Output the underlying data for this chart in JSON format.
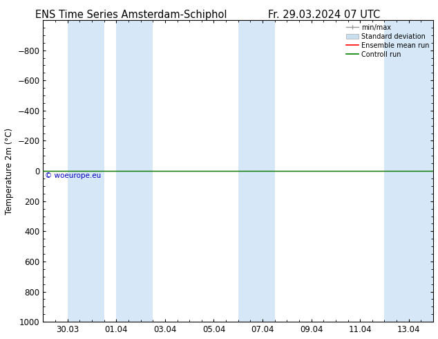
{
  "title_left": "ENS Time Series Amsterdam-Schiphol",
  "title_right": "Fr. 29.03.2024 07 UTC",
  "ylabel": "Temperature 2m (°C)",
  "watermark": "© woeurope.eu",
  "ylim_bottom": 1000,
  "ylim_top": -1000,
  "yticks": [
    -800,
    -600,
    -400,
    -200,
    0,
    200,
    400,
    600,
    800,
    1000
  ],
  "x_start": "2024-03-29",
  "x_end": "2024-04-14",
  "xtick_positions": [
    1,
    3,
    5,
    7,
    9,
    11,
    13,
    15
  ],
  "xtick_labels": [
    "30.03",
    "01.04",
    "03.04",
    "05.04",
    "07.04",
    "09.04",
    "11.04",
    "13.04"
  ],
  "bg_color": "#ffffff",
  "plot_bg_color": "#ffffff",
  "shaded_bands": [
    [
      1,
      2.5
    ],
    [
      3,
      4.5
    ],
    [
      8,
      9.5
    ],
    [
      14,
      16
    ]
  ],
  "shaded_color": "#d6e8f7",
  "std_dev_color": "#c8dff0",
  "minmax_color": "#999999",
  "ensemble_mean_color": "#ff0000",
  "control_run_color": "#008000",
  "legend_labels": [
    "min/max",
    "Standard deviation",
    "Ensemble mean run",
    "Controll run"
  ],
  "flat_value": 0,
  "title_fontsize": 10.5,
  "tick_fontsize": 8.5,
  "ylabel_fontsize": 8.5
}
